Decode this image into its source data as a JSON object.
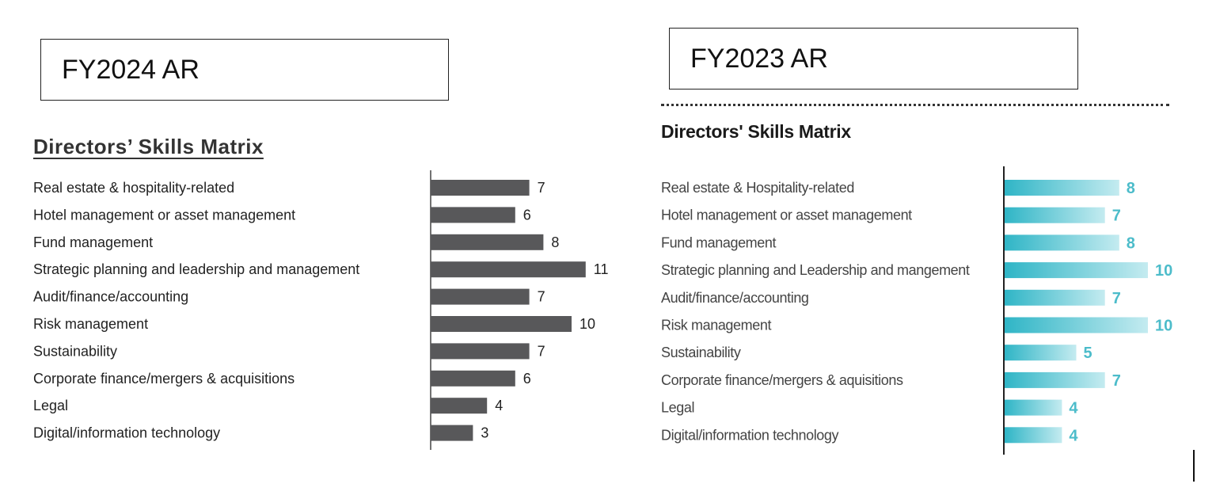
{
  "panels": {
    "left_label": "FY2024 AR",
    "right_label": "FY2023 AR"
  },
  "colors": {
    "fy2024_bar": "#58585a",
    "fy2023_bar_start": "#2fb5c6",
    "fy2023_bar_end": "#c4ebf0",
    "fy2023_value_text": "#4cbcca"
  },
  "chart_data": [
    {
      "type": "bar",
      "orientation": "horizontal",
      "title": "Directors’ Skills Matrix",
      "categories": [
        "Real estate & hospitality-related",
        "Hotel management or asset management",
        "Fund management",
        "Strategic planning and leadership and management",
        "Audit/finance/accounting",
        "Risk management",
        "Sustainability",
        "Corporate finance/mergers & acquisitions",
        "Legal",
        "Digital/information technology"
      ],
      "values": [
        7,
        6,
        8,
        11,
        7,
        10,
        7,
        6,
        4,
        3
      ],
      "xlim": [
        0,
        11
      ],
      "grid": false
    },
    {
      "type": "bar",
      "orientation": "horizontal",
      "title": "Directors' Skills Matrix",
      "categories": [
        "Real estate & Hospitality-related",
        "Hotel management or asset management",
        "Fund management",
        "Strategic planning and Leadership and mangement",
        "Audit/finance/accounting",
        "Risk management",
        "Sustainability",
        "Corporate finance/mergers & aquisitions",
        "Legal",
        "Digital/information technology"
      ],
      "values": [
        8,
        7,
        8,
        10,
        7,
        10,
        5,
        7,
        4,
        4
      ],
      "xlim": [
        0,
        10
      ],
      "grid": false
    }
  ]
}
